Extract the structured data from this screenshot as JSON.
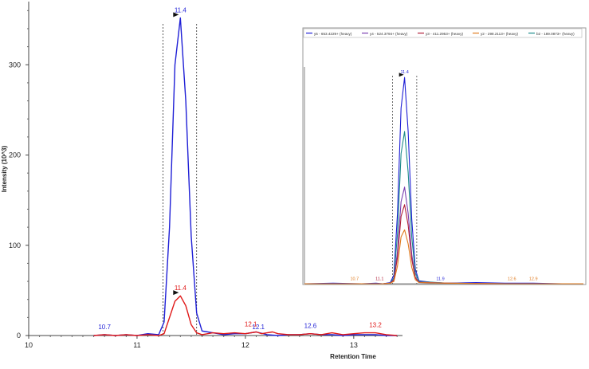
{
  "chart_data": [
    {
      "type": "line",
      "xlabel": "Retention Time",
      "ylabel": "Intensity (10^3)",
      "xlim": [
        10,
        13.45
      ],
      "ylim": [
        0,
        370
      ],
      "x_ticks": [
        10,
        11,
        12,
        13
      ],
      "x_tick_labels": [
        "10",
        "11",
        "12",
        "13"
      ],
      "y_ticks": [
        0,
        100,
        200,
        300
      ],
      "y_tick_labels": [
        "0",
        "100",
        "200",
        "300"
      ],
      "integration_bounds": [
        11.24,
        11.55
      ],
      "series": [
        {
          "color": "#1f1fd6",
          "x": [
            10.6,
            10.7,
            10.8,
            10.9,
            11.0,
            11.1,
            11.2,
            11.25,
            11.3,
            11.35,
            11.4,
            11.45,
            11.5,
            11.55,
            11.6,
            11.7,
            11.8,
            11.9,
            12.0,
            12.1,
            12.2,
            12.3,
            12.4,
            12.5,
            12.6,
            12.7,
            12.8,
            12.9,
            13.0,
            13.1,
            13.2,
            13.3,
            13.4
          ],
          "y": [
            0,
            1,
            0,
            1,
            0,
            2,
            1,
            15,
            120,
            300,
            352,
            260,
            110,
            25,
            5,
            3,
            1,
            2,
            2,
            4,
            1,
            0,
            1,
            1,
            2,
            1,
            1,
            0,
            1,
            1,
            1,
            0,
            0
          ]
        },
        {
          "color": "#e01818",
          "x": [
            10.6,
            10.7,
            10.8,
            10.9,
            11.0,
            11.1,
            11.2,
            11.25,
            11.3,
            11.35,
            11.4,
            11.45,
            11.5,
            11.55,
            11.6,
            11.7,
            11.8,
            11.9,
            12.0,
            12.1,
            12.15,
            12.2,
            12.25,
            12.3,
            12.4,
            12.5,
            12.6,
            12.7,
            12.8,
            12.9,
            13.0,
            13.1,
            13.2,
            13.3,
            13.4
          ],
          "y": [
            0,
            1,
            0,
            1,
            0,
            1,
            0,
            2,
            20,
            38,
            44,
            33,
            12,
            3,
            1,
            3,
            2,
            3,
            2,
            4,
            2,
            3,
            4,
            2,
            1,
            1,
            2,
            1,
            3,
            1,
            2,
            3,
            3,
            1,
            0
          ]
        }
      ],
      "peak_labels": [
        {
          "text": "11.4",
          "x": 11.4,
          "y": 352,
          "color": "#1f1fd6",
          "marker": true
        },
        {
          "text": "11.4",
          "x": 11.4,
          "y": 44,
          "color": "#e01818",
          "marker": true
        },
        {
          "text": "10.7",
          "x": 10.7,
          "y": 1,
          "color": "#1f1fd6"
        },
        {
          "text": "12.1",
          "x": 12.05,
          "y": 4,
          "color": "#e01818"
        },
        {
          "text": "12.1",
          "x": 12.12,
          "y": 1,
          "color": "#1f1fd6"
        },
        {
          "text": "12.6",
          "x": 12.6,
          "y": 2,
          "color": "#1f1fd6"
        },
        {
          "text": "13.2",
          "x": 13.2,
          "y": 3,
          "color": "#e01818"
        }
      ]
    },
    {
      "type": "line",
      "xlim": [
        10,
        13.9
      ],
      "ylim": [
        0,
        370
      ],
      "integration_bounds": [
        11.23,
        11.57
      ],
      "legend": {
        "placement": "top",
        "entries": [
          {
            "label": "y5 - 653.4229+ (heavy)",
            "color": "#1f1fd6"
          },
          {
            "label": "y4 - 524.3794+ (heavy)",
            "color": "#7a3fb0"
          },
          {
            "label": "y3 - 411.2953+ (heavy)",
            "color": "#b0203a"
          },
          {
            "label": "y2 - 298.2113+ (heavy)",
            "color": "#e07b1f"
          },
          {
            "label": "b2 - 189.0873+ (heavy)",
            "color": "#1d8a8a"
          }
        ]
      },
      "series": [
        {
          "name": "y5 - 653.4229+ (heavy)",
          "color": "#1f1fd6",
          "x": [
            10.0,
            10.4,
            10.8,
            11.0,
            11.1,
            11.2,
            11.25,
            11.3,
            11.35,
            11.4,
            11.45,
            11.5,
            11.55,
            11.6,
            11.8,
            12.0,
            12.4,
            12.8,
            13.2,
            13.6,
            13.9
          ],
          "y": [
            0,
            1,
            0,
            1,
            0,
            2,
            15,
            120,
            300,
            352,
            260,
            110,
            25,
            5,
            2,
            1,
            2,
            1,
            1,
            0,
            0
          ]
        },
        {
          "name": "b2 - 189.0873+ (heavy)",
          "color": "#1d8a8a",
          "x": [
            10.0,
            10.8,
            11.1,
            11.2,
            11.25,
            11.3,
            11.35,
            11.4,
            11.45,
            11.5,
            11.55,
            11.6,
            12.0,
            12.8,
            13.9
          ],
          "y": [
            0,
            0,
            0,
            1,
            10,
            85,
            222,
            260,
            190,
            80,
            18,
            4,
            1,
            0,
            0
          ]
        },
        {
          "name": "y4 - 524.3794+ (heavy)",
          "color": "#7a3fb0",
          "x": [
            10.0,
            10.8,
            11.1,
            11.2,
            11.25,
            11.3,
            11.35,
            11.4,
            11.45,
            11.5,
            11.55,
            11.6,
            12.0,
            12.8,
            13.9
          ],
          "y": [
            0,
            0,
            0,
            1,
            7,
            55,
            140,
            165,
            120,
            50,
            11,
            3,
            1,
            0,
            0
          ]
        },
        {
          "name": "y3 - 411.2953+ (heavy)",
          "color": "#b0203a",
          "x": [
            10.0,
            10.8,
            11.1,
            11.2,
            11.25,
            11.3,
            11.35,
            11.4,
            11.45,
            11.5,
            11.55,
            11.6,
            12.0,
            12.8,
            13.9
          ],
          "y": [
            0,
            0,
            0,
            1,
            6,
            45,
            115,
            135,
            100,
            42,
            10,
            2,
            1,
            0,
            0
          ]
        },
        {
          "name": "y2 - 298.2113+ (heavy)",
          "color": "#e07b1f",
          "x": [
            10.0,
            10.8,
            11.1,
            11.2,
            11.25,
            11.3,
            11.35,
            11.4,
            11.45,
            11.5,
            11.55,
            11.6,
            12.0,
            12.8,
            13.9
          ],
          "y": [
            0,
            0,
            0,
            1,
            4,
            30,
            80,
            92,
            68,
            28,
            7,
            2,
            1,
            0,
            0
          ]
        }
      ],
      "peak_labels": [
        {
          "text": "11.4",
          "x": 11.4,
          "y": 352,
          "color": "#1f1fd6",
          "marker": true
        },
        {
          "text": "10.7",
          "x": 10.7,
          "y": 1,
          "color": "#e07b1f"
        },
        {
          "text": "11.1",
          "x": 11.05,
          "y": 1,
          "color": "#b0203a"
        },
        {
          "text": "11.9",
          "x": 11.9,
          "y": 1,
          "color": "#1f1fd6"
        },
        {
          "text": "12.6",
          "x": 12.9,
          "y": 1,
          "color": "#e07b1f"
        },
        {
          "text": "12.9",
          "x": 13.2,
          "y": 1,
          "color": "#e07b1f"
        }
      ]
    }
  ]
}
